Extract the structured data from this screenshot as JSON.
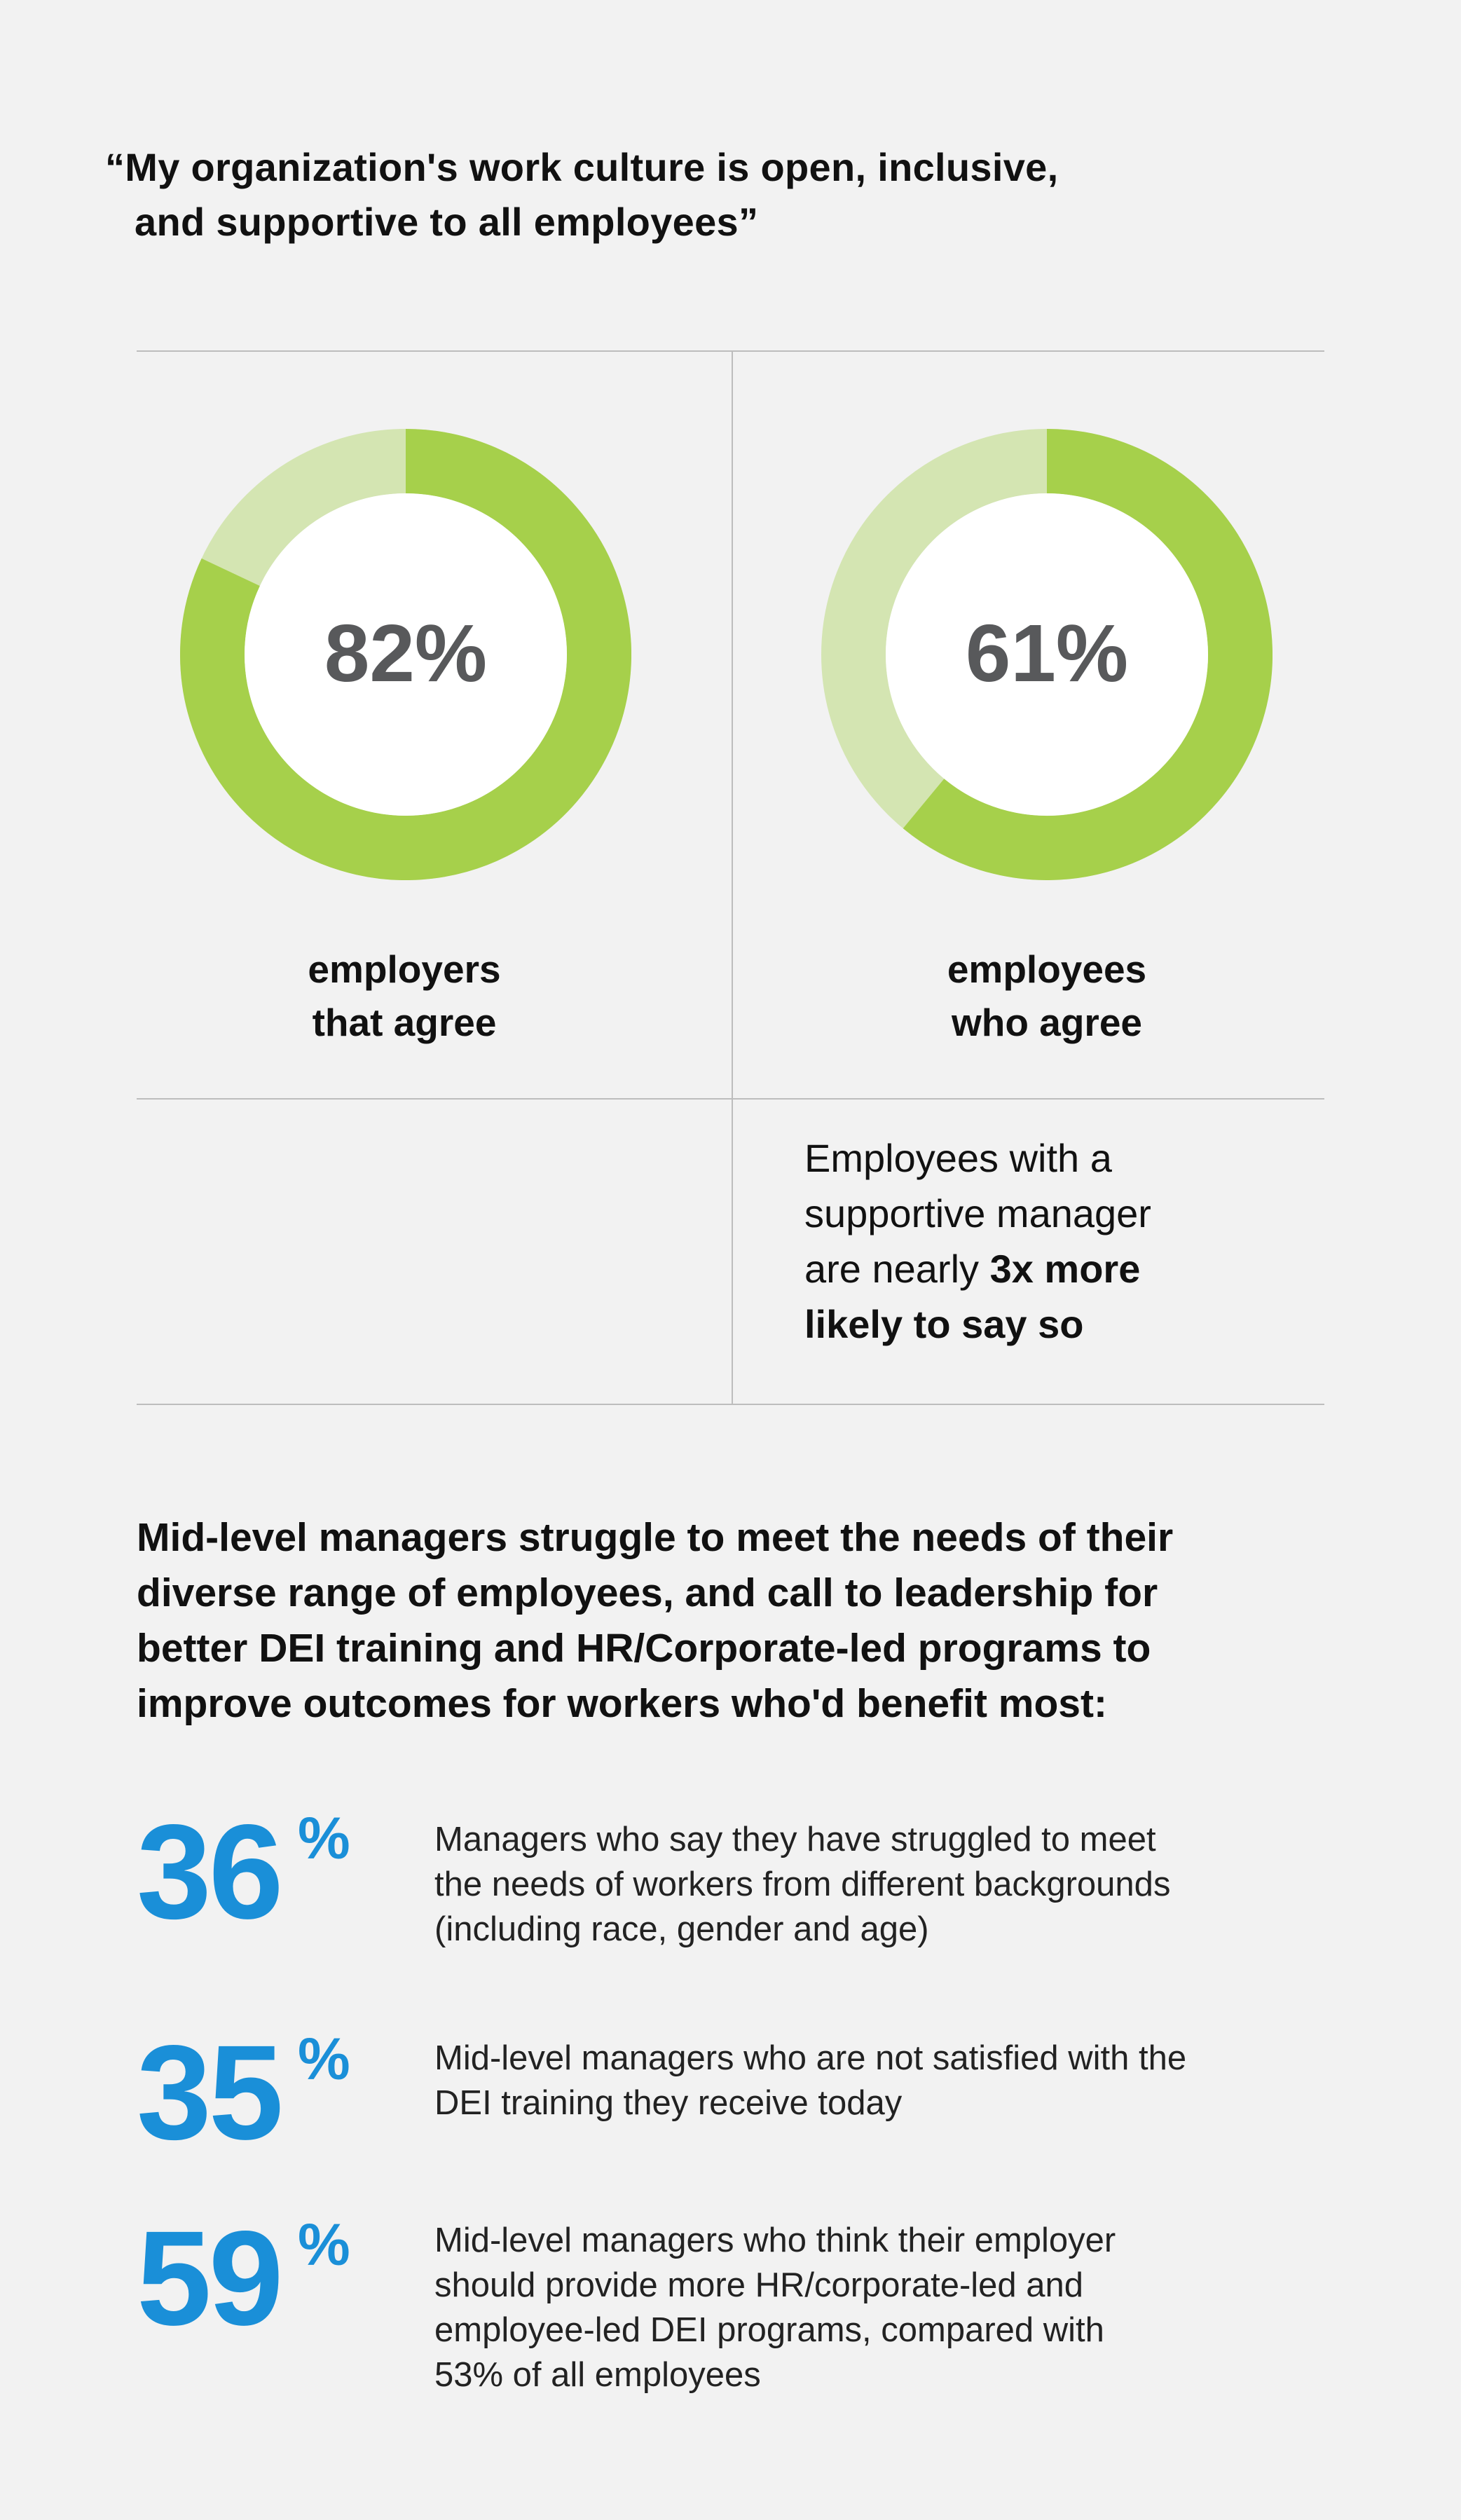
{
  "quote": {
    "line1": "“My organization's work culture is open, inclusive,",
    "line2": "and supportive to all employees”"
  },
  "colors": {
    "ring_fill": "#a6d04b",
    "ring_track": "#d4e5b2",
    "percent_text": "#58595b",
    "stat_blue": "#1a8fd8",
    "divider": "#bdbdbd"
  },
  "chart_data": [
    {
      "type": "pie",
      "center_label": "82%",
      "values": [
        82,
        18
      ],
      "label_lines": [
        "employers",
        "that agree"
      ]
    },
    {
      "type": "pie",
      "center_label": "61%",
      "values": [
        61,
        39
      ],
      "label_lines": [
        "employees",
        "who agree"
      ]
    }
  ],
  "note": {
    "line1": "Employees with a",
    "line2": "supportive manager",
    "line3_plain": "are nearly ",
    "line3_bold": "3x more",
    "line4_bold": "likely to say so"
  },
  "heading": {
    "lines": [
      "Mid-level managers struggle to meet the needs of their",
      "diverse range of employees, and call to leadership for",
      "better DEI training and HR/Corporate-led programs to",
      "improve outcomes for workers who'd benefit most:"
    ]
  },
  "stats": [
    {
      "value": "36",
      "percent_sign": "%",
      "lines": [
        "Managers who say they have struggled to meet",
        "the needs of workers from different backgrounds",
        "(including race, gender and age)"
      ]
    },
    {
      "value": "35",
      "percent_sign": "%",
      "lines": [
        "Mid-level managers who are not satisfied with the",
        "DEI training they receive today"
      ]
    },
    {
      "value": "59",
      "percent_sign": "%",
      "lines": [
        "Mid-level managers who think their employer",
        "should provide more HR/corporate-led and",
        "employee-led DEI programs, compared with",
        "53% of all employees"
      ]
    }
  ]
}
